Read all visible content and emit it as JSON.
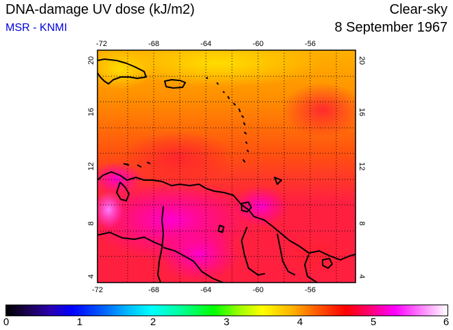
{
  "header": {
    "title": "DNA-damage UV dose (kJ/m2)",
    "source": "MSR - KNMI",
    "condition": "Clear-sky",
    "date": "8 September 1967"
  },
  "map": {
    "lon_ticks": [
      "-72",
      "-68",
      "-64",
      "-60",
      "-56"
    ],
    "lat_ticks": [
      "20",
      "16",
      "12",
      "8",
      "4"
    ]
  },
  "colorbar": {
    "labels": [
      "0",
      "1",
      "2",
      "3",
      "4",
      "5",
      "6"
    ]
  }
}
